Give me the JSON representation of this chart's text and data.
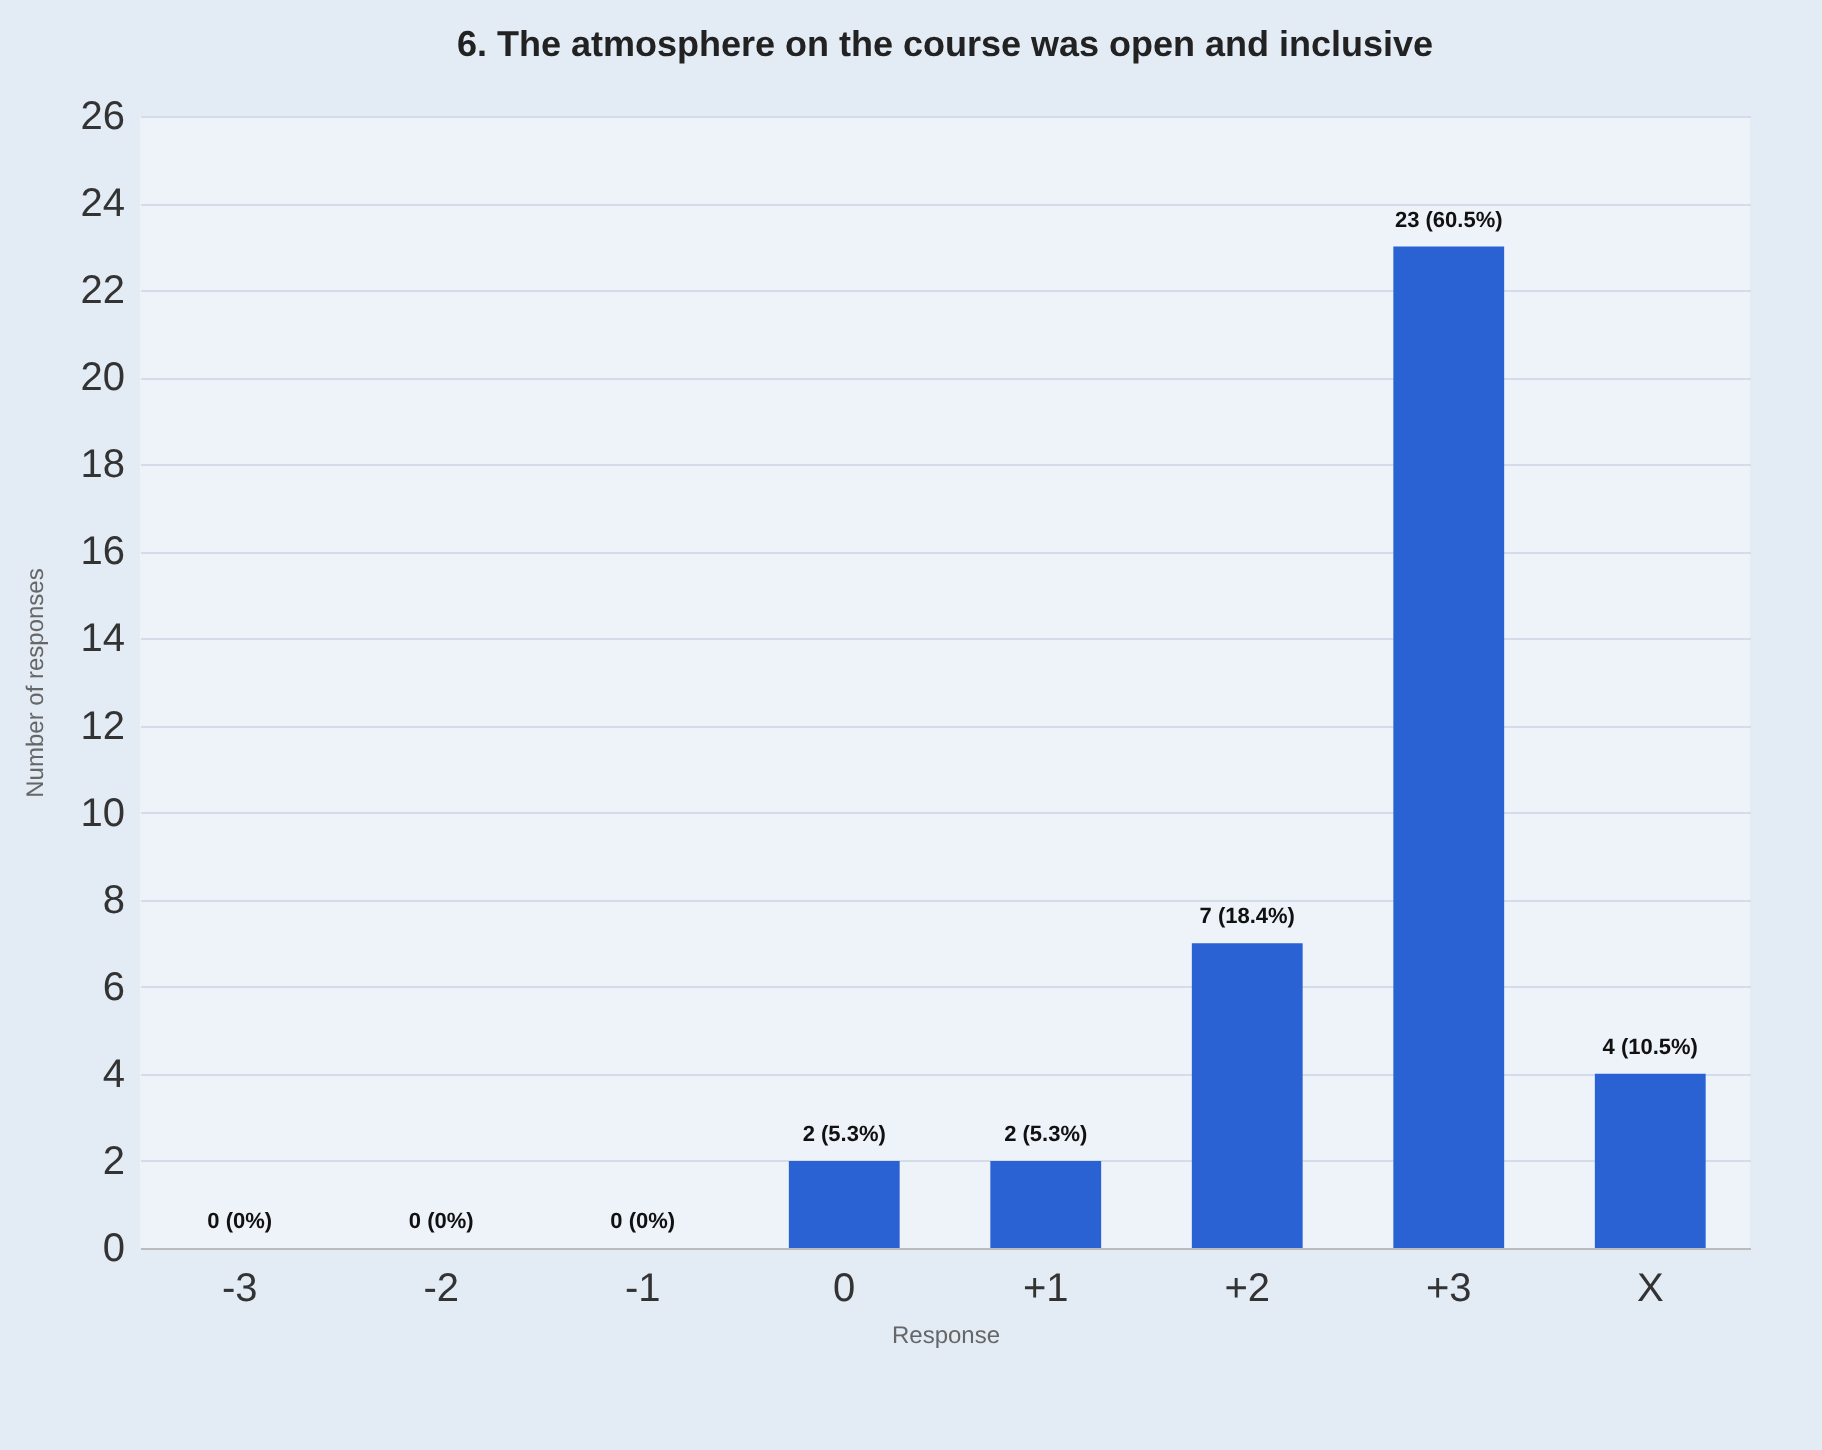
{
  "chart_data": {
    "type": "bar",
    "title": "6. The atmosphere on the course was open and inclusive",
    "xlabel": "Response",
    "ylabel": "Number of responses",
    "categories": [
      "-3",
      "-2",
      "-1",
      "0",
      "+1",
      "+2",
      "+3",
      "X"
    ],
    "values": [
      0,
      0,
      0,
      2,
      2,
      7,
      23,
      4
    ],
    "value_labels": [
      "0 (0%)",
      "0 (0%)",
      "0 (0%)",
      "2 (5.3%)",
      "2 (5.3%)",
      "7 (18.4%)",
      "23 (60.5%)",
      "4 (10.5%)"
    ],
    "color": "#2a62d4",
    "ylim": [
      0,
      26
    ],
    "yticks": [
      0,
      2,
      4,
      6,
      8,
      10,
      12,
      14,
      16,
      18,
      20,
      22,
      24,
      26
    ],
    "grid": "y"
  }
}
